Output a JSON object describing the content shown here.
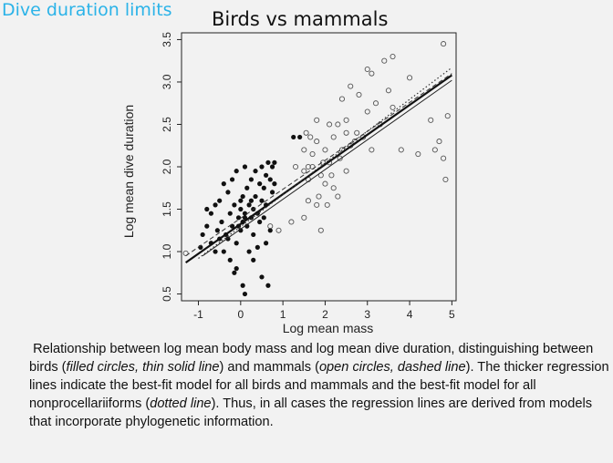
{
  "slide": {
    "title": "Dive duration  limits"
  },
  "chart_data": {
    "type": "scatter",
    "title": "Birds vs mammals",
    "xlabel": "Log mean mass",
    "ylabel": "Log mean dive duration",
    "xlim": [
      -1.4,
      5.1
    ],
    "ylim": [
      0.42,
      3.58
    ],
    "xticks": [
      "-1",
      "0",
      "1",
      "2",
      "3",
      "4",
      "5"
    ],
    "xtick_values": [
      -1,
      0,
      1,
      2,
      3,
      4,
      5
    ],
    "yticks": [
      "0.5",
      "1.0",
      "1.5",
      "2.0",
      "2.5",
      "3.0",
      "3.5"
    ],
    "ytick_values": [
      0.5,
      1.0,
      1.5,
      2.0,
      2.5,
      3.0,
      3.5
    ],
    "grid": false,
    "series": [
      {
        "marker": "filled-circle",
        "color": "#111111",
        "points": [
          [
            -0.9,
            1.2
          ],
          [
            -0.8,
            1.3
          ],
          [
            -0.7,
            1.1
          ],
          [
            -0.7,
            1.45
          ],
          [
            -0.6,
            1.55
          ],
          [
            -0.55,
            1.25
          ],
          [
            -0.5,
            1.6
          ],
          [
            -0.45,
            1.35
          ],
          [
            -0.4,
            1.8
          ],
          [
            -0.35,
            1.2
          ],
          [
            -0.3,
            1.7
          ],
          [
            -0.25,
            1.45
          ],
          [
            -0.2,
            1.3
          ],
          [
            -0.2,
            1.85
          ],
          [
            -0.15,
            1.55
          ],
          [
            -0.1,
            1.1
          ],
          [
            -0.1,
            1.95
          ],
          [
            -0.05,
            1.4
          ],
          [
            0.0,
            1.5
          ],
          [
            0.0,
            1.25
          ],
          [
            0.05,
            1.65
          ],
          [
            0.05,
            1.35
          ],
          [
            0.1,
            1.45
          ],
          [
            0.1,
            2.0
          ],
          [
            0.15,
            1.3
          ],
          [
            0.15,
            1.75
          ],
          [
            0.2,
            1.55
          ],
          [
            0.25,
            1.4
          ],
          [
            0.25,
            1.85
          ],
          [
            0.3,
            1.5
          ],
          [
            0.3,
            1.2
          ],
          [
            0.35,
            1.65
          ],
          [
            0.35,
            1.95
          ],
          [
            0.4,
            1.45
          ],
          [
            0.45,
            1.8
          ],
          [
            0.45,
            1.35
          ],
          [
            0.5,
            1.6
          ],
          [
            0.5,
            2.0
          ],
          [
            0.55,
            1.75
          ],
          [
            0.6,
            1.55
          ],
          [
            0.6,
            1.9
          ],
          [
            0.65,
            2.05
          ],
          [
            0.7,
            1.85
          ],
          [
            0.75,
            1.7
          ],
          [
            0.75,
            2.0
          ],
          [
            0.8,
            1.8
          ],
          [
            0.8,
            2.05
          ],
          [
            0.0,
            1.6
          ],
          [
            -0.05,
            1.3
          ],
          [
            0.1,
            1.4
          ],
          [
            -0.3,
            1.15
          ],
          [
            -0.6,
            1.0
          ],
          [
            -0.95,
            1.05
          ],
          [
            -0.8,
            1.5
          ],
          [
            -0.4,
            1.0
          ],
          [
            -0.25,
            0.9
          ],
          [
            -0.1,
            0.8
          ],
          [
            0.05,
            0.6
          ],
          [
            0.1,
            0.5
          ],
          [
            0.3,
            0.9
          ],
          [
            0.5,
            0.7
          ],
          [
            0.6,
            1.1
          ],
          [
            0.7,
            1.25
          ],
          [
            0.4,
            1.05
          ],
          [
            -0.15,
            0.75
          ],
          [
            0.2,
            1.0
          ],
          [
            0.65,
            0.6
          ],
          [
            1.25,
            2.35
          ],
          [
            1.4,
            2.35
          ],
          [
            0.55,
            1.4
          ],
          [
            -0.5,
            1.15
          ],
          [
            0.25,
            1.6
          ]
        ]
      },
      {
        "marker": "open-circle",
        "color": "#555555",
        "points": [
          [
            -1.3,
            0.98
          ],
          [
            0.7,
            1.3
          ],
          [
            0.9,
            1.25
          ],
          [
            1.2,
            1.35
          ],
          [
            1.5,
            1.4
          ],
          [
            1.6,
            1.6
          ],
          [
            1.8,
            1.55
          ],
          [
            1.9,
            1.25
          ],
          [
            1.6,
            1.85
          ],
          [
            1.7,
            2.0
          ],
          [
            1.9,
            1.9
          ],
          [
            2.0,
            1.8
          ],
          [
            2.1,
            2.05
          ],
          [
            2.2,
            1.75
          ],
          [
            2.3,
            1.65
          ],
          [
            2.5,
            1.95
          ],
          [
            1.5,
            1.95
          ],
          [
            1.7,
            2.15
          ],
          [
            1.8,
            2.3
          ],
          [
            2.0,
            2.2
          ],
          [
            2.2,
            2.35
          ],
          [
            2.4,
            2.2
          ],
          [
            2.5,
            2.4
          ],
          [
            2.6,
            2.25
          ],
          [
            1.8,
            2.55
          ],
          [
            2.1,
            2.5
          ],
          [
            2.3,
            2.5
          ],
          [
            2.5,
            2.55
          ],
          [
            2.7,
            2.3
          ],
          [
            2.9,
            2.35
          ],
          [
            3.0,
            2.65
          ],
          [
            3.2,
            2.75
          ],
          [
            3.3,
            2.5
          ],
          [
            3.5,
            2.9
          ],
          [
            3.6,
            2.7
          ],
          [
            2.4,
            2.8
          ],
          [
            2.6,
            2.95
          ],
          [
            2.8,
            2.85
          ],
          [
            3.0,
            3.15
          ],
          [
            3.1,
            3.1
          ],
          [
            3.4,
            3.25
          ],
          [
            3.6,
            3.3
          ],
          [
            4.0,
            3.05
          ],
          [
            4.5,
            2.55
          ],
          [
            4.7,
            2.3
          ],
          [
            4.8,
            2.1
          ],
          [
            4.85,
            1.85
          ],
          [
            4.9,
            2.6
          ],
          [
            4.8,
            3.45
          ],
          [
            3.8,
            2.2
          ],
          [
            4.2,
            2.15
          ],
          [
            4.6,
            2.2
          ],
          [
            1.5,
            2.2
          ],
          [
            1.65,
            2.35
          ],
          [
            1.55,
            2.4
          ],
          [
            2.05,
            1.55
          ],
          [
            1.85,
            1.65
          ],
          [
            2.15,
            1.9
          ],
          [
            2.35,
            2.1
          ],
          [
            1.95,
            2.05
          ],
          [
            2.75,
            2.4
          ],
          [
            3.1,
            2.2
          ],
          [
            1.3,
            2.0
          ],
          [
            1.6,
            2.0
          ]
        ]
      }
    ],
    "lines": [
      {
        "name": "all",
        "x": [
          -1.3,
          5.0
        ],
        "y": [
          0.87,
          3.08
        ],
        "style": "thick-solid"
      },
      {
        "name": "birds",
        "x": [
          -0.9,
          5.0
        ],
        "y": [
          0.95,
          3.02
        ],
        "style": "thin-solid"
      },
      {
        "name": "mammals",
        "x": [
          -1.3,
          5.0
        ],
        "y": [
          0.95,
          3.1
        ],
        "style": "dashed"
      },
      {
        "name": "nonprocellariiforms",
        "x": [
          -1.0,
          5.0
        ],
        "y": [
          0.92,
          3.17
        ],
        "style": "dotted"
      }
    ]
  },
  "caption": {
    "text": "Relationship between log mean body mass and log mean dive duration, distinguishing between birds (",
    "em1": "filled circles, thin solid line",
    "t2": ") and mammals (",
    "em2": "open circles, dashed line",
    "t3": "). The thicker regression lines indicate the best-fit model for all birds and mammals and the best-fit model for all nonprocellariiforms (",
    "em3": "dotted line",
    "t4": "). Thus, in all cases the regression lines are derived from models that incorporate phylogenetic information."
  }
}
